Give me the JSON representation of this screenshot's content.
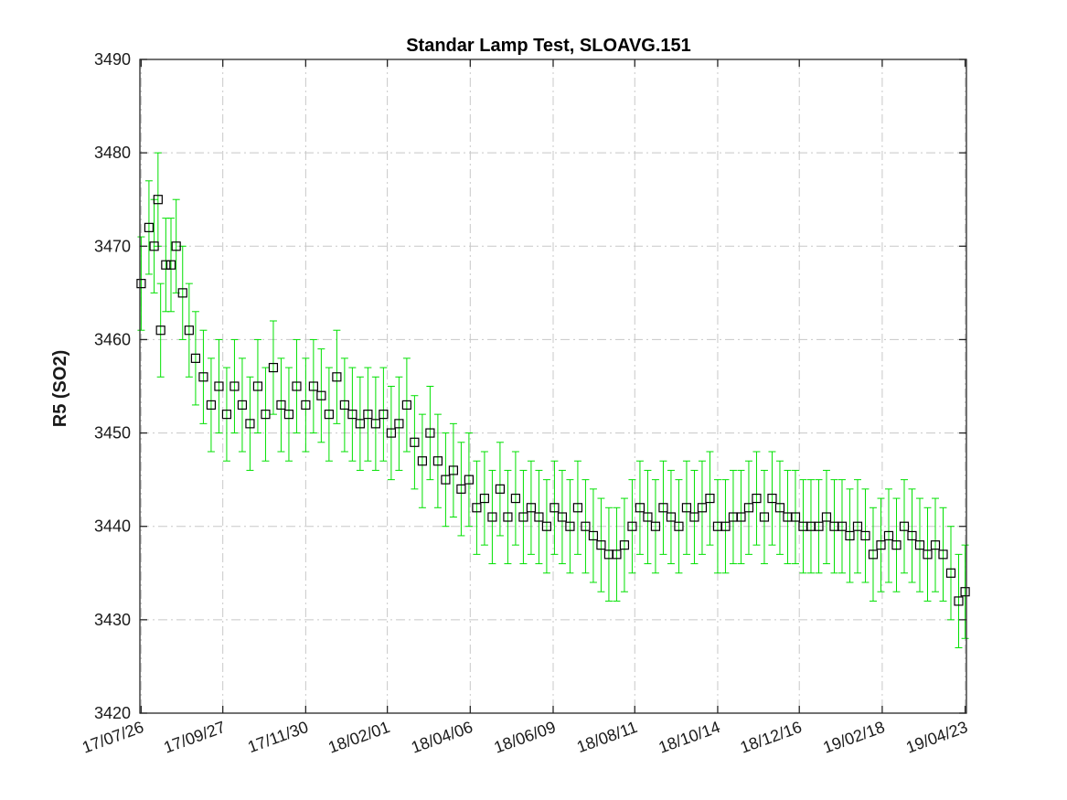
{
  "chart_data": {
    "type": "scatter",
    "title": "Standar Lamp Test, SLOAVG.151",
    "xlabel": "",
    "ylabel": "R5 (SO2)",
    "ylim": [
      3420,
      3490
    ],
    "yticks": [
      3420,
      3430,
      3440,
      3450,
      3460,
      3470,
      3480,
      3490
    ],
    "x_axis_type": "date",
    "xlim": [
      "2017-07-25",
      "2019-04-24"
    ],
    "xtick_dates": [
      "2017-07-26",
      "2017-09-27",
      "2017-11-30",
      "2018-02-01",
      "2018-04-06",
      "2018-06-09",
      "2018-08-11",
      "2018-10-14",
      "2018-12-16",
      "2019-02-18",
      "2019-04-23"
    ],
    "xtick_labels": [
      "17/07/26",
      "17/09/27",
      "17/11/30",
      "18/02/01",
      "18/04/06",
      "18/06/09",
      "18/08/11",
      "18/10/14",
      "18/12/16",
      "19/02/18",
      "19/04/23"
    ],
    "grid": true,
    "marker": "square",
    "colors": {
      "marker": "#000000",
      "errorbar": "#00e000",
      "axis": "#262626",
      "grid": "#c8c8c8"
    },
    "series": [
      {
        "error": 5,
        "points": [
          [
            "2017-07-26",
            3466
          ],
          [
            "2017-08-01",
            3472
          ],
          [
            "2017-08-05",
            3470
          ],
          [
            "2017-08-08",
            3475
          ],
          [
            "2017-08-10",
            3461
          ],
          [
            "2017-08-14",
            3468
          ],
          [
            "2017-08-18",
            3468
          ],
          [
            "2017-08-22",
            3470
          ],
          [
            "2017-08-27",
            3465
          ],
          [
            "2017-09-01",
            3461
          ],
          [
            "2017-09-06",
            3458
          ],
          [
            "2017-09-12",
            3456
          ],
          [
            "2017-09-18",
            3453
          ],
          [
            "2017-09-24",
            3455
          ],
          [
            "2017-09-30",
            3452
          ],
          [
            "2017-10-06",
            3455
          ],
          [
            "2017-10-12",
            3453
          ],
          [
            "2017-10-18",
            3451
          ],
          [
            "2017-10-24",
            3455
          ],
          [
            "2017-10-30",
            3452
          ],
          [
            "2017-11-05",
            3457
          ],
          [
            "2017-11-11",
            3453
          ],
          [
            "2017-11-17",
            3452
          ],
          [
            "2017-11-23",
            3455
          ],
          [
            "2017-11-30",
            3453
          ],
          [
            "2017-12-06",
            3455
          ],
          [
            "2017-12-12",
            3454
          ],
          [
            "2017-12-18",
            3452
          ],
          [
            "2017-12-24",
            3456
          ],
          [
            "2017-12-30",
            3453
          ],
          [
            "2018-01-05",
            3452
          ],
          [
            "2018-01-11",
            3451
          ],
          [
            "2018-01-17",
            3452
          ],
          [
            "2018-01-23",
            3451
          ],
          [
            "2018-01-29",
            3452
          ],
          [
            "2018-02-04",
            3450
          ],
          [
            "2018-02-10",
            3451
          ],
          [
            "2018-02-16",
            3453
          ],
          [
            "2018-02-22",
            3449
          ],
          [
            "2018-02-28",
            3447
          ],
          [
            "2018-03-06",
            3450
          ],
          [
            "2018-03-12",
            3447
          ],
          [
            "2018-03-18",
            3445
          ],
          [
            "2018-03-24",
            3446
          ],
          [
            "2018-03-30",
            3444
          ],
          [
            "2018-04-05",
            3445
          ],
          [
            "2018-04-11",
            3442
          ],
          [
            "2018-04-17",
            3443
          ],
          [
            "2018-04-23",
            3441
          ],
          [
            "2018-04-29",
            3444
          ],
          [
            "2018-05-05",
            3441
          ],
          [
            "2018-05-11",
            3443
          ],
          [
            "2018-05-17",
            3441
          ],
          [
            "2018-05-23",
            3442
          ],
          [
            "2018-05-29",
            3441
          ],
          [
            "2018-06-04",
            3440
          ],
          [
            "2018-06-10",
            3442
          ],
          [
            "2018-06-16",
            3441
          ],
          [
            "2018-06-22",
            3440
          ],
          [
            "2018-06-28",
            3442
          ],
          [
            "2018-07-04",
            3440
          ],
          [
            "2018-07-10",
            3439
          ],
          [
            "2018-07-16",
            3438
          ],
          [
            "2018-07-22",
            3437
          ],
          [
            "2018-07-28",
            3437
          ],
          [
            "2018-08-03",
            3438
          ],
          [
            "2018-08-09",
            3440
          ],
          [
            "2018-08-15",
            3442
          ],
          [
            "2018-08-21",
            3441
          ],
          [
            "2018-08-27",
            3440
          ],
          [
            "2018-09-02",
            3442
          ],
          [
            "2018-09-08",
            3441
          ],
          [
            "2018-09-14",
            3440
          ],
          [
            "2018-09-20",
            3442
          ],
          [
            "2018-09-26",
            3441
          ],
          [
            "2018-10-02",
            3442
          ],
          [
            "2018-10-08",
            3443
          ],
          [
            "2018-10-14",
            3440
          ],
          [
            "2018-10-20",
            3440
          ],
          [
            "2018-10-26",
            3441
          ],
          [
            "2018-11-01",
            3441
          ],
          [
            "2018-11-07",
            3442
          ],
          [
            "2018-11-13",
            3443
          ],
          [
            "2018-11-19",
            3441
          ],
          [
            "2018-11-25",
            3443
          ],
          [
            "2018-12-01",
            3442
          ],
          [
            "2018-12-07",
            3441
          ],
          [
            "2018-12-13",
            3441
          ],
          [
            "2018-12-19",
            3440
          ],
          [
            "2018-12-25",
            3440
          ],
          [
            "2018-12-31",
            3440
          ],
          [
            "2019-01-06",
            3441
          ],
          [
            "2019-01-12",
            3440
          ],
          [
            "2019-01-18",
            3440
          ],
          [
            "2019-01-24",
            3439
          ],
          [
            "2019-01-30",
            3440
          ],
          [
            "2019-02-05",
            3439
          ],
          [
            "2019-02-11",
            3437
          ],
          [
            "2019-02-17",
            3438
          ],
          [
            "2019-02-23",
            3439
          ],
          [
            "2019-03-01",
            3438
          ],
          [
            "2019-03-07",
            3440
          ],
          [
            "2019-03-13",
            3439
          ],
          [
            "2019-03-19",
            3438
          ],
          [
            "2019-03-25",
            3437
          ],
          [
            "2019-03-31",
            3438
          ],
          [
            "2019-04-06",
            3437
          ],
          [
            "2019-04-12",
            3435
          ],
          [
            "2019-04-18",
            3432
          ],
          [
            "2019-04-23",
            3433
          ]
        ]
      }
    ]
  }
}
